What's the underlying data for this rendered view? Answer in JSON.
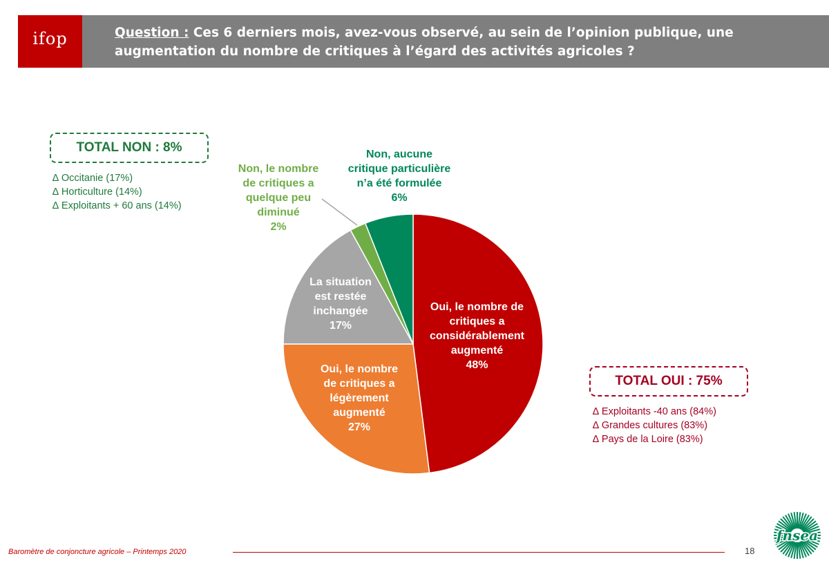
{
  "header": {
    "logo": "ifop",
    "question_label": "Question :",
    "question_text": " Ces 6 derniers mois, avez-vous observé, au sein de l’opinion publique, une augmentation du nombre de critiques à l’égard des activités agricoles ?"
  },
  "colors": {
    "header_bg": "#7f7f7f",
    "brand_red": "#c00000",
    "non_green": "#1f7a3c"
  },
  "chart_data": {
    "type": "pie",
    "start": "12 o'clock, clockwise",
    "slices": [
      {
        "id": "oui-consid",
        "line1": "Oui, le nombre de",
        "line2": "critiques a",
        "line3": "considérablement",
        "line4": "augmenté",
        "pct_label": "48%",
        "value": 48,
        "color": "#c00000",
        "text_color": "#ffffff"
      },
      {
        "id": "oui-leger",
        "line1": "Oui, le nombre",
        "line2": "de critiques a",
        "line3": "légèrement",
        "line4": "augmenté",
        "pct_label": "27%",
        "value": 27,
        "color": "#ed7d31",
        "text_color": "#ffffff"
      },
      {
        "id": "inchangee",
        "line1": "La situation",
        "line2": "est restée",
        "line3": "inchangée",
        "pct_label": "17%",
        "value": 17,
        "color": "#a6a6a6",
        "text_color": "#ffffff"
      },
      {
        "id": "non-diminue",
        "line1": "Non, le nombre",
        "line2": "de critiques a",
        "line3": "quelque peu",
        "line4": "diminué",
        "pct_label": "2%",
        "value": 2,
        "color": "#70ad47",
        "text_color": "#70ad47"
      },
      {
        "id": "non-aucune",
        "line1": "Non, aucune",
        "line2": "critique particulière",
        "line3": "n’a été formulée",
        "pct_label": "6%",
        "value": 6,
        "color": "#00875a",
        "text_color": "#00875a"
      }
    ]
  },
  "totals": {
    "non": {
      "label": "TOTAL NON : 8%",
      "items": [
        "∆ Occitanie (17%)",
        "∆ Horticulture (14%)",
        "∆ Exploitants + 60 ans (14%)"
      ]
    },
    "oui": {
      "label": "TOTAL OUI : 75%",
      "items": [
        "∆ Exploitants -40 ans (84%)",
        "∆ Grandes cultures (83%)",
        "∆ Pays de la Loire (83%)"
      ]
    }
  },
  "footer": {
    "text": "Baromètre de conjoncture agricole – Printemps 2020",
    "page": "18",
    "logo": "fnsea"
  }
}
